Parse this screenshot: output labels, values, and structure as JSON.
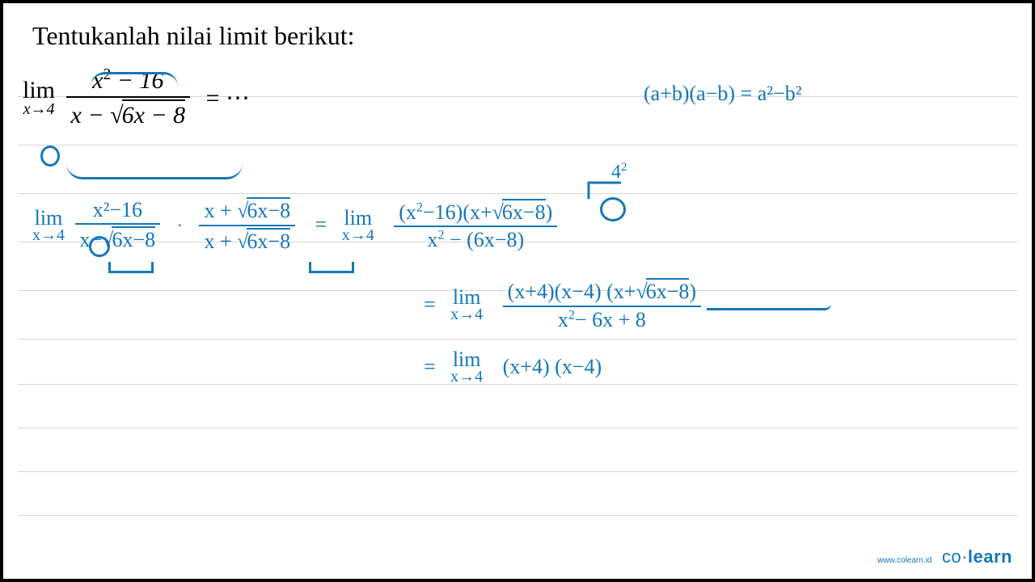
{
  "colors": {
    "ink": "#1477b8",
    "rule": "#d7d7d7",
    "text": "#000000",
    "bg": "#ffffff"
  },
  "ruled_line_y": [
    115,
    175,
    235,
    295,
    355,
    415,
    471,
    525,
    579,
    633
  ],
  "title": "Tentukanlah nilai limit berikut:",
  "problem": {
    "lim_top": "lim",
    "lim_sub": "x→4",
    "numerator_expr": "x² − 16",
    "denom_left": "x − ",
    "denom_sqrt": "6x − 8",
    "tail": "= ⋯"
  },
  "identity": "(a+b)(a−b) = a²−b²",
  "four_sq": "4²",
  "step1": {
    "lim_top": "lim",
    "lim_sub": "x→4",
    "f1_num": "x²−16",
    "f1_den_left": "x−",
    "f1_den_sqrt": "6x−8",
    "dot": "·",
    "f2_num_left": "x + ",
    "f2_num_sqrt": "6x−8",
    "f2_den_left": "x + ",
    "f2_den_sqrt": "6x−8",
    "eq": "=",
    "rhs_lim_top": "lim",
    "rhs_lim_sub": "x→4",
    "rhs_num_a": "(x²−16)",
    "rhs_num_b_left": "(x+",
    "rhs_num_b_sqrt": "6x−8",
    "rhs_num_b_right": ")",
    "rhs_den": "x² − (6x−8)"
  },
  "step2": {
    "eq": "=",
    "lim_top": "lim",
    "lim_sub": "x→4",
    "num": "(x+4)(x−4) (x+",
    "num_sqrt": "6x−8",
    "num_tail": ")",
    "den": "x²− 6x + 8"
  },
  "step3": {
    "eq": "=",
    "lim_top": "lim",
    "lim_sub": "x→4",
    "rest": "(x+4) (x−4)"
  },
  "watermark_url": "www.colearn.id",
  "watermark_logo_a": "co",
  "watermark_logo_dot": "·",
  "watermark_logo_b": "learn"
}
